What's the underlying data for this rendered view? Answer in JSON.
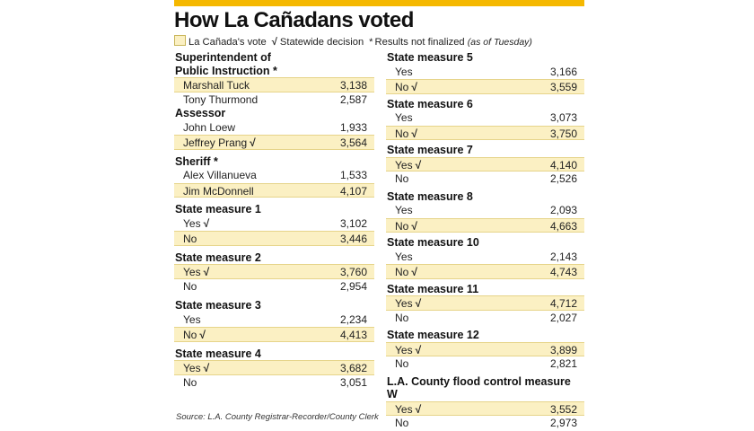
{
  "title": "How La Cañadans voted",
  "legend": {
    "highlight_label": "La Cañada's vote",
    "check_symbol": "√",
    "check_label": "Statewide decision",
    "asterisk_symbol": "*",
    "asterisk_label": "Results not finalized",
    "asof": "(as of Tuesday)"
  },
  "colors": {
    "accent": "#f5b800",
    "highlight": "#fbf0c3"
  },
  "races": [
    {
      "title": "Superintendent of Public Instruction *",
      "title_lines": [
        "Superintendent of",
        "Public Instruction *"
      ],
      "rows": [
        {
          "name": "Marshall Tuck",
          "value": "3,138",
          "hl": true,
          "check": false
        },
        {
          "name": "Tony Thurmond",
          "value": "2,587",
          "hl": false,
          "check": false
        }
      ]
    },
    {
      "title": "Assessor",
      "title_lines": [
        "Assessor"
      ],
      "rows": [
        {
          "name": "John Loew",
          "value": "1,933",
          "hl": false,
          "check": false
        },
        {
          "name": "Jeffrey Prang",
          "value": "3,564",
          "hl": true,
          "check": true
        }
      ]
    },
    {
      "title": "Sheriff *",
      "title_lines": [
        "Sheriff *"
      ],
      "rows": [
        {
          "name": "Alex Villanueva",
          "value": "1,533",
          "hl": false,
          "check": false
        },
        {
          "name": "Jim McDonnell",
          "value": "4,107",
          "hl": true,
          "check": false
        }
      ]
    },
    {
      "title": "State measure 1",
      "title_lines": [
        "State measure 1"
      ],
      "rows": [
        {
          "name": "Yes",
          "value": "3,102",
          "hl": false,
          "check": true
        },
        {
          "name": "No",
          "value": "3,446",
          "hl": true,
          "check": false
        }
      ]
    },
    {
      "title": "State measure 2",
      "title_lines": [
        "State measure 2"
      ],
      "rows": [
        {
          "name": "Yes",
          "value": "3,760",
          "hl": true,
          "check": true
        },
        {
          "name": "No",
          "value": "2,954",
          "hl": false,
          "check": false
        }
      ]
    },
    {
      "title": "State measure 3",
      "title_lines": [
        "State measure 3"
      ],
      "rows": [
        {
          "name": "Yes",
          "value": "2,234",
          "hl": false,
          "check": false
        },
        {
          "name": "No",
          "value": "4,413",
          "hl": true,
          "check": true
        }
      ]
    },
    {
      "title": "State measure 4",
      "title_lines": [
        "State measure 4"
      ],
      "rows": [
        {
          "name": "Yes",
          "value": "3,682",
          "hl": true,
          "check": true
        },
        {
          "name": "No",
          "value": "3,051",
          "hl": false,
          "check": false
        }
      ]
    },
    {
      "title": "State measure 5",
      "title_lines": [
        "State measure 5"
      ],
      "rows": [
        {
          "name": "Yes",
          "value": "3,166",
          "hl": false,
          "check": false
        },
        {
          "name": "No",
          "value": "3,559",
          "hl": true,
          "check": true
        }
      ]
    },
    {
      "title": "State measure 6",
      "title_lines": [
        "State measure 6"
      ],
      "rows": [
        {
          "name": "Yes",
          "value": "3,073",
          "hl": false,
          "check": false
        },
        {
          "name": "No",
          "value": "3,750",
          "hl": true,
          "check": true
        }
      ]
    },
    {
      "title": "State measure 7",
      "title_lines": [
        "State measure 7"
      ],
      "rows": [
        {
          "name": "Yes",
          "value": "4,140",
          "hl": true,
          "check": true
        },
        {
          "name": "No",
          "value": "2,526",
          "hl": false,
          "check": false
        }
      ]
    },
    {
      "title": "State measure 8",
      "title_lines": [
        "State measure 8"
      ],
      "rows": [
        {
          "name": "Yes",
          "value": "2,093",
          "hl": false,
          "check": false
        },
        {
          "name": "No",
          "value": "4,663",
          "hl": true,
          "check": true
        }
      ]
    },
    {
      "title": "State measure 10",
      "title_lines": [
        "State measure 10"
      ],
      "rows": [
        {
          "name": "Yes",
          "value": "2,143",
          "hl": false,
          "check": false
        },
        {
          "name": "No",
          "value": "4,743",
          "hl": true,
          "check": true
        }
      ]
    },
    {
      "title": "State measure 11",
      "title_lines": [
        "State measure 11"
      ],
      "rows": [
        {
          "name": "Yes",
          "value": "4,712",
          "hl": true,
          "check": true
        },
        {
          "name": "No",
          "value": "2,027",
          "hl": false,
          "check": false
        }
      ]
    },
    {
      "title": "State measure 12",
      "title_lines": [
        "State measure 12"
      ],
      "rows": [
        {
          "name": "Yes",
          "value": "3,899",
          "hl": true,
          "check": true
        },
        {
          "name": "No",
          "value": "2,821",
          "hl": false,
          "check": false
        }
      ]
    },
    {
      "title": "L.A. County flood control measure W",
      "title_lines": [
        "L.A. County flood control measure W"
      ],
      "rows": [
        {
          "name": "Yes",
          "value": "3,552",
          "hl": true,
          "check": true
        },
        {
          "name": "No",
          "value": "2,973",
          "hl": false,
          "check": false
        }
      ]
    }
  ],
  "source": "Source: L.A. County Registrar-Recorder/County Clerk"
}
